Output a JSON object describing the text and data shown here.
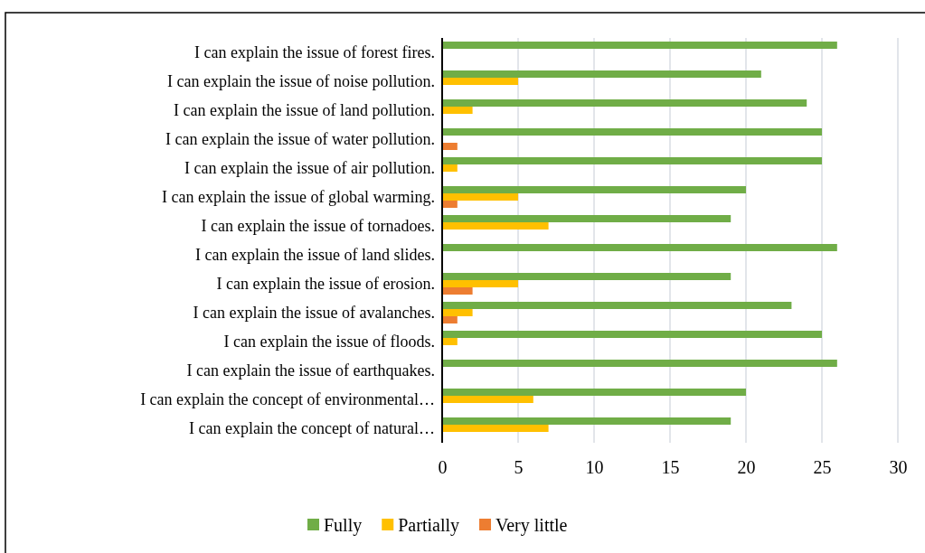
{
  "chart_data": {
    "type": "bar",
    "orientation": "horizontal",
    "categories": [
      "I can explain the issue of forest fires.",
      "I can explain the issue of noise pollution.",
      "I can explain the issue of land pollution.",
      "I can explain the issue of water pollution.",
      "I can explain the issue of air pollution.",
      "I can explain the issue of global warming.",
      "I can explain the issue of tornadoes.",
      "I can explain the issue of land slides.",
      "I can explain the issue of erosion.",
      "I can explain the issue of avalanches.",
      "I can explain the issue of floods.",
      "I can explain the issue of earthquakes.",
      "I can explain the concept of environmental…",
      "I can explain the concept of natural…"
    ],
    "series": [
      {
        "name": "Fully",
        "color": "#70ad47",
        "values": [
          26,
          21,
          24,
          25,
          25,
          20,
          19,
          26,
          19,
          23,
          25,
          26,
          20,
          19
        ]
      },
      {
        "name": "Partially",
        "color": "#ffc000",
        "values": [
          0,
          5,
          2,
          0,
          1,
          5,
          7,
          0,
          5,
          2,
          1,
          0,
          6,
          7
        ]
      },
      {
        "name": "Very little",
        "color": "#ed7d31",
        "values": [
          0,
          0,
          0,
          1,
          0,
          1,
          0,
          0,
          2,
          1,
          0,
          0,
          0,
          0
        ]
      }
    ],
    "xlim": [
      0,
      30
    ],
    "xticks": [
      0,
      5,
      10,
      15,
      20,
      25,
      30
    ],
    "grid": "x",
    "legend": "bottom"
  }
}
